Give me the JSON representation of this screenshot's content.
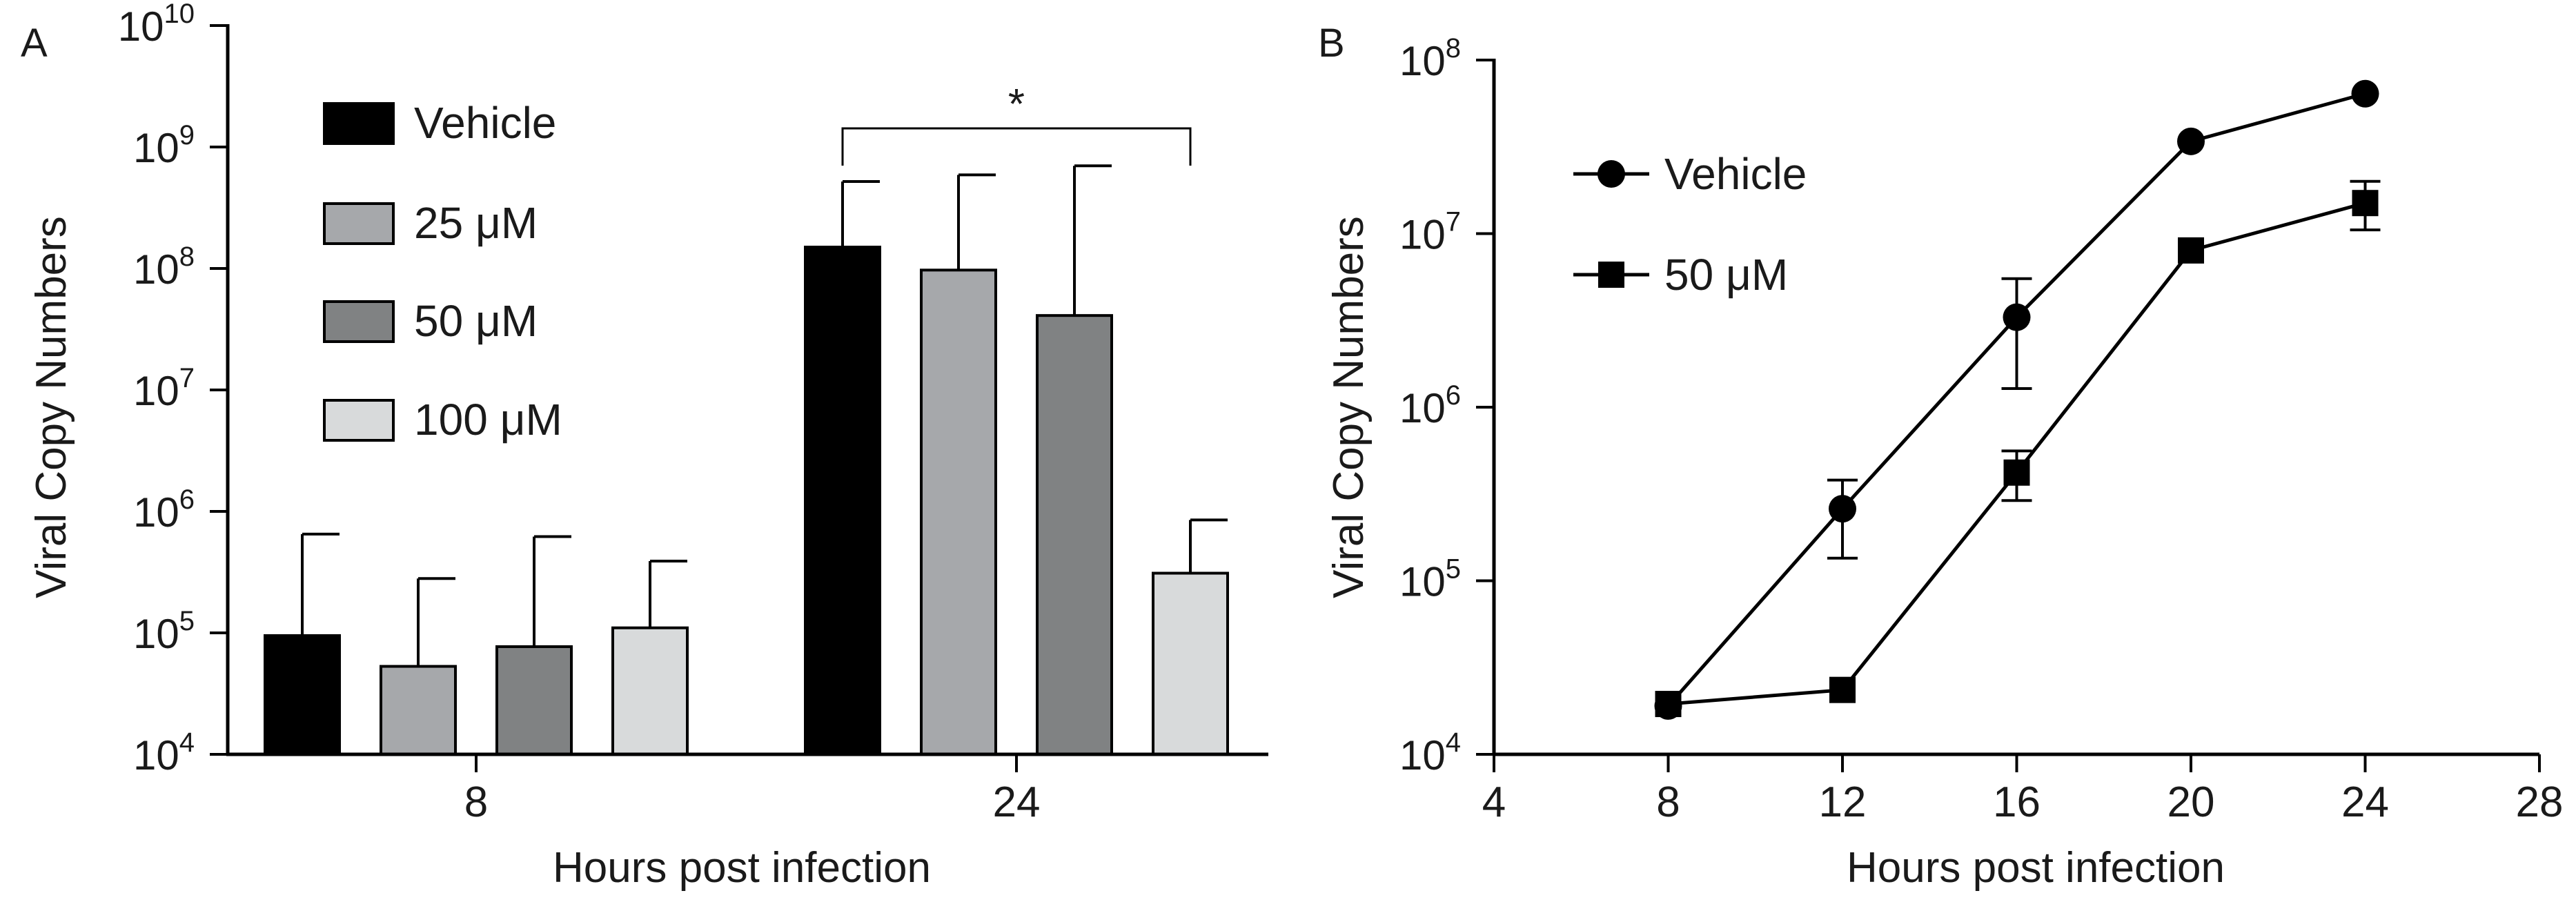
{
  "chart_data": [
    {
      "panel_label": "A",
      "type": "bar",
      "yscale": "log",
      "ylabel": "Viral Copy Numbers",
      "xlabel": "Hours post infection",
      "ylim": [
        10000,
        10000000000
      ],
      "yticks": [
        {
          "base": "10",
          "exp": "4"
        },
        {
          "base": "10",
          "exp": "5"
        },
        {
          "base": "10",
          "exp": "6"
        },
        {
          "base": "10",
          "exp": "7"
        },
        {
          "base": "10",
          "exp": "8"
        },
        {
          "base": "10",
          "exp": "9"
        },
        {
          "base": "10",
          "exp": "10"
        }
      ],
      "categories": [
        "8",
        "24"
      ],
      "series": [
        {
          "name": "Vehicle",
          "color": "#000000",
          "values": [
            95000,
            150000000
          ],
          "error_upper": [
            650000,
            520000000
          ]
        },
        {
          "name": "25 μM",
          "color": "#a6a8ab",
          "values": [
            53000,
            97000000
          ],
          "error_upper": [
            280000,
            590000000
          ]
        },
        {
          "name": "50 μM",
          "color": "#808283",
          "values": [
            77000,
            41000000
          ],
          "error_upper": [
            620000,
            700000000
          ]
        },
        {
          "name": "100 μM",
          "color": "#d8dadb",
          "values": [
            110000,
            310000
          ],
          "error_upper": [
            390000,
            850000
          ]
        }
      ],
      "annotation": {
        "text": "*",
        "from_series": "Vehicle",
        "to_series": "100 μM",
        "category": "24"
      }
    },
    {
      "panel_label": "B",
      "type": "line",
      "yscale": "log",
      "ylabel": "Viral Copy Numbers",
      "xlabel": "Hours post infection",
      "xlim": [
        4,
        28
      ],
      "xticks": [
        "4",
        "8",
        "12",
        "16",
        "20",
        "24",
        "28"
      ],
      "ylim": [
        10000,
        100000000
      ],
      "yticks": [
        {
          "base": "10",
          "exp": "4"
        },
        {
          "base": "10",
          "exp": "5"
        },
        {
          "base": "10",
          "exp": "6"
        },
        {
          "base": "10",
          "exp": "7"
        },
        {
          "base": "10",
          "exp": "8"
        }
      ],
      "series": [
        {
          "name": "Vehicle",
          "marker": "circle",
          "x": [
            8,
            12,
            16,
            20,
            24
          ],
          "values": [
            19000,
            260000,
            3300000,
            34000000,
            64000000
          ],
          "error_upper": [
            null,
            380000,
            5500000,
            null,
            null
          ],
          "error_lower": [
            null,
            135000,
            1280000,
            null,
            null
          ]
        },
        {
          "name": "50 μM",
          "marker": "square",
          "x": [
            8,
            12,
            16,
            20,
            24
          ],
          "values": [
            19500,
            23500,
            420000,
            8000000,
            15000000
          ],
          "error_upper": [
            null,
            null,
            560000,
            null,
            20000000
          ],
          "error_lower": [
            null,
            null,
            290000,
            null,
            10500000
          ]
        }
      ]
    }
  ]
}
